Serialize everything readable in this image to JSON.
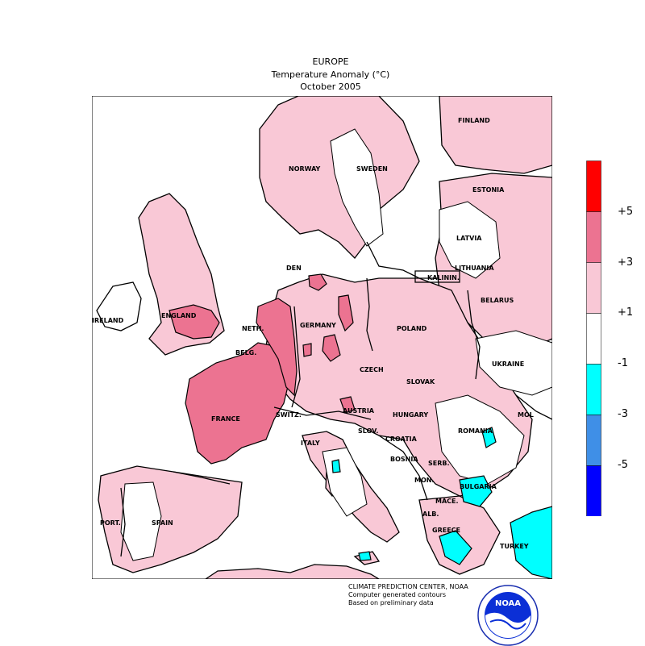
{
  "header": {
    "region": "EUROPE",
    "variable": "Temperature Anomaly (°C)",
    "period": "October 2005"
  },
  "legend": {
    "bins": [
      {
        "range": "> +5",
        "color": "#ff0000"
      },
      {
        "range": "+3 to +5",
        "color": "#ec7391"
      },
      {
        "range": "+1 to +3",
        "color": "#f9c8d6"
      },
      {
        "range": "-1 to +1",
        "color": "#ffffff"
      },
      {
        "range": "-3 to -1",
        "color": "#00ffff"
      },
      {
        "range": "-5 to -3",
        "color": "#3f8fe7"
      },
      {
        "range": "< -5",
        "color": "#0000ff"
      }
    ],
    "labels": [
      "+5",
      "+3",
      "+1",
      "-1",
      "-3",
      "-5"
    ]
  },
  "country_labels": {
    "finland": "FINLAND",
    "norway": "NORWAY",
    "sweden": "SWEDEN",
    "estonia": "ESTONIA",
    "latvia": "LATVIA",
    "lithuania": "LITHUANIA",
    "kaliningrad": "KALININ.",
    "belarus": "BELARUS",
    "den": "DEN",
    "ireland": "IRELAND",
    "england": "ENGLAND",
    "neth": "NETH.",
    "germany": "GERMANY",
    "poland": "POLAND",
    "belg": "BELG.",
    "ukraine": "UKRAINE",
    "czech": "CZECH",
    "slovak": "SLOVAK",
    "france": "FRANCE",
    "switz": "SWITZ.",
    "austria": "AUSTRIA",
    "hungary": "HUNGARY",
    "romania": "ROMANIA",
    "mol": "MOL",
    "italy": "ITALY",
    "slov": "SLOV.",
    "croatia": "CROATIA",
    "bosnia": "BOSNIA",
    "serb": "SERB.",
    "mon": "MON.",
    "bulgaria": "BULGARIA",
    "mace": "MACE.",
    "alb": "ALB.",
    "port": "PORT.",
    "spain": "SPAIN",
    "greece": "GREECE",
    "turkey": "TURKEY"
  },
  "credits": {
    "line1": "CLIMATE PREDICTION CENTER, NOAA",
    "line2": "Computer generated contours",
    "line3": "Based on preliminary data"
  },
  "logo": {
    "text": "NOAA"
  }
}
